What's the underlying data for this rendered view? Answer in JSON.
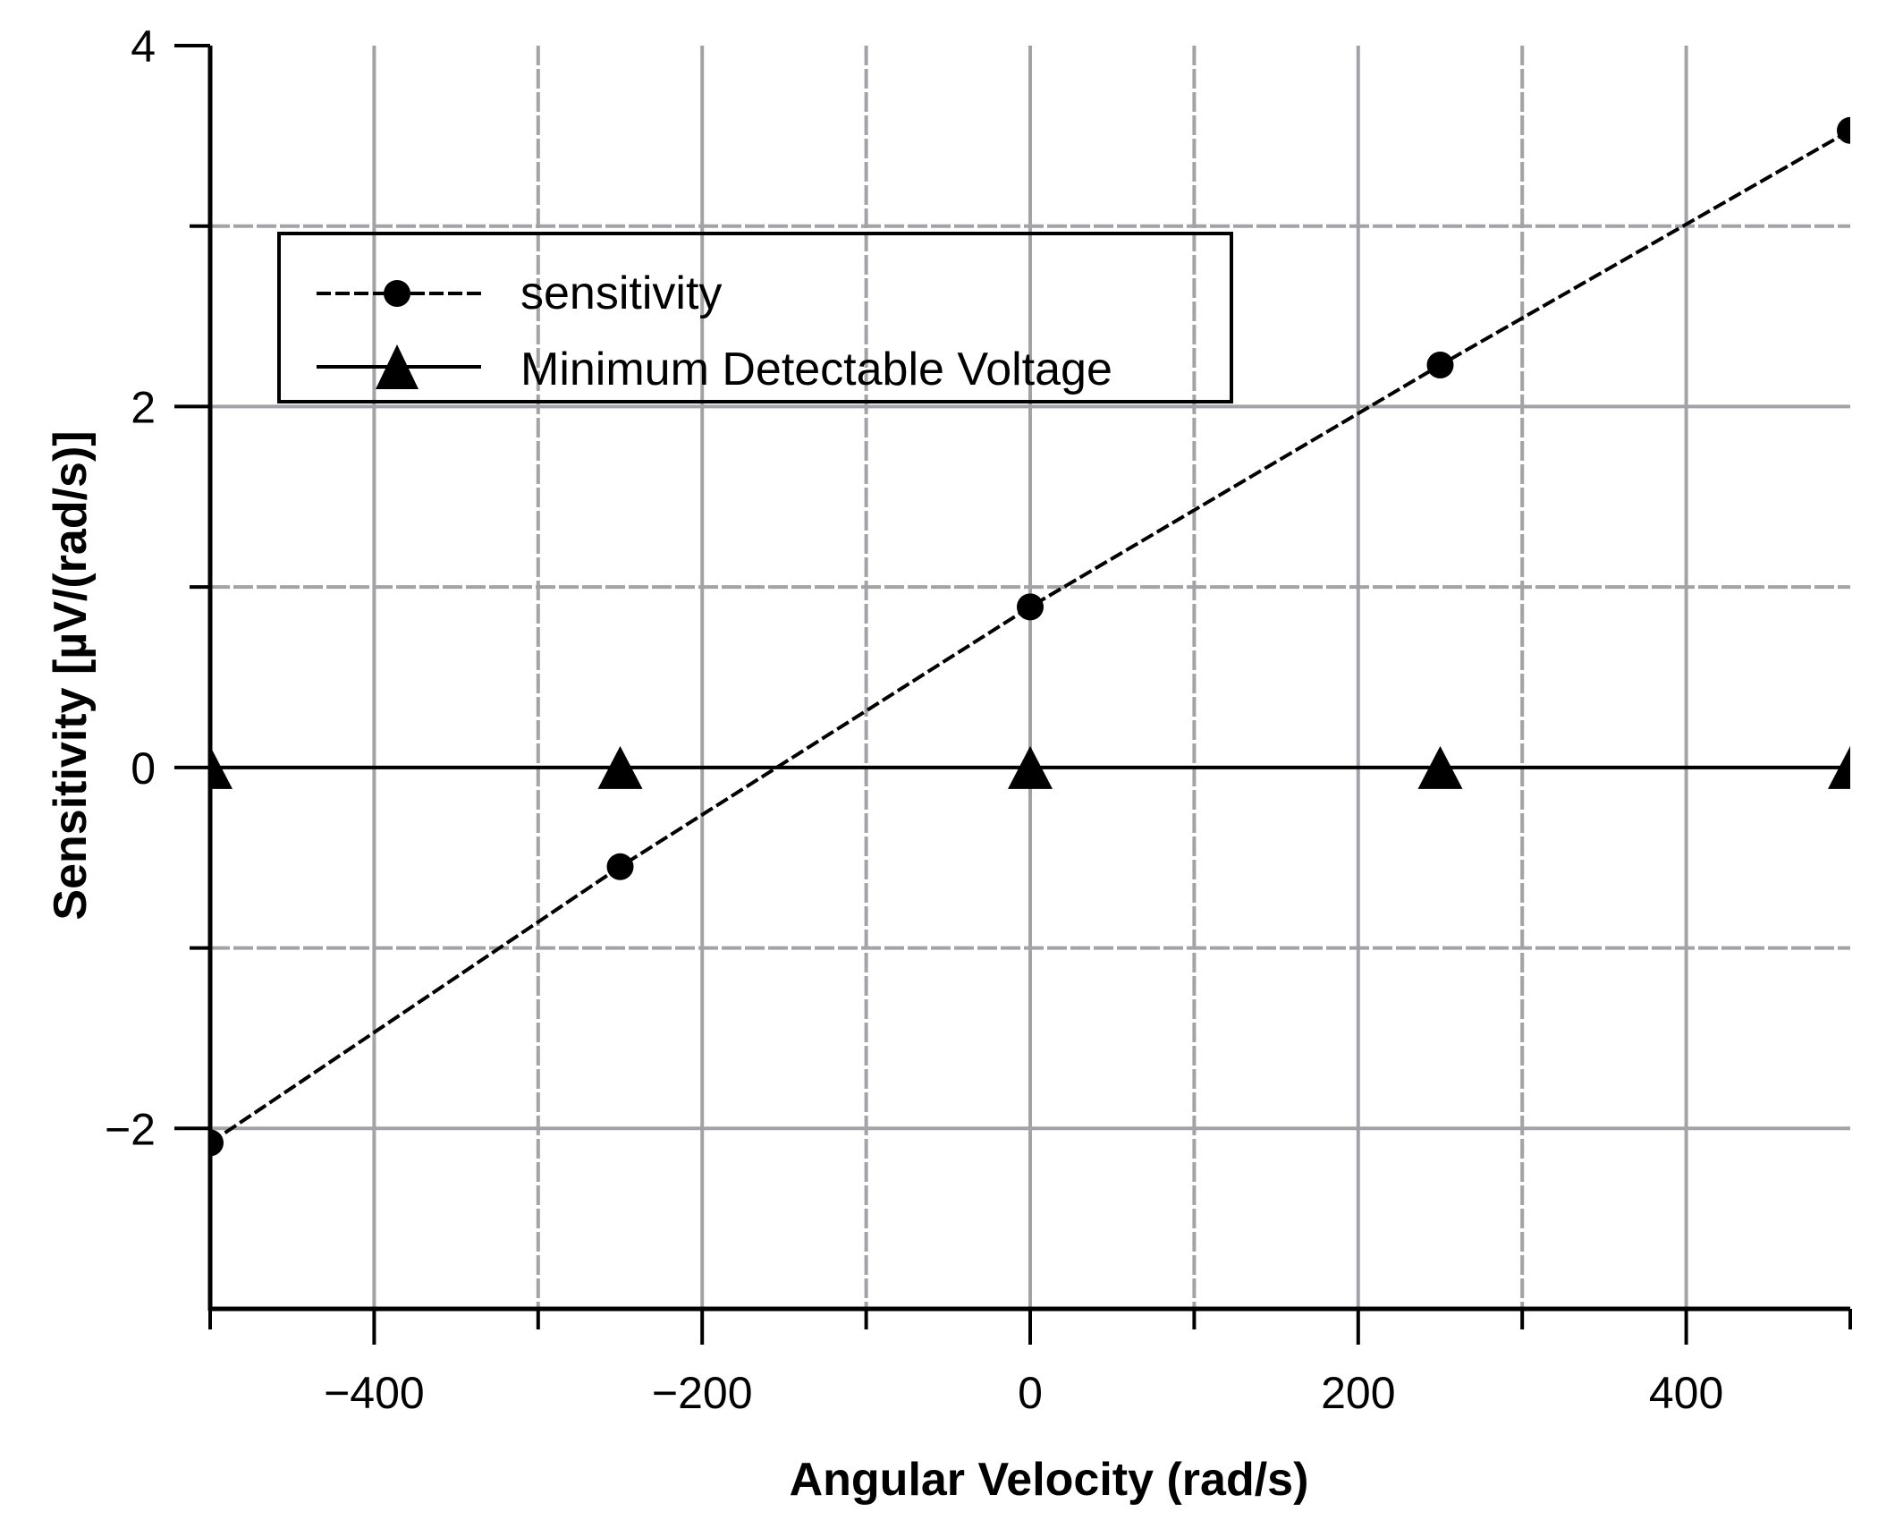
{
  "chart_data": {
    "type": "line",
    "title": "",
    "xlabel": "Angular Velocity (rad/s)",
    "ylabel": "Sensitivity [µV/(rad/s)]",
    "xlim": [
      -500,
      500
    ],
    "ylim": [
      -3,
      4
    ],
    "x_ticks": [
      -400,
      -200,
      0,
      200,
      400
    ],
    "x_tick_labels": [
      "−400",
      "−200",
      "0",
      "200",
      "400"
    ],
    "x_minor_ticks": [
      -500,
      -300,
      -100,
      100,
      300,
      500
    ],
    "y_ticks": [
      4,
      2,
      0,
      -2
    ],
    "y_tick_labels": [
      "4",
      "2",
      "0",
      "−2"
    ],
    "y_minor_ticks": [
      3,
      1,
      -1
    ],
    "grid": true,
    "legend_position": "upper left",
    "x": [
      -500,
      -250,
      0,
      250,
      500
    ],
    "series": [
      {
        "name": "sensitivity",
        "marker": "circle",
        "line": "dashed",
        "values": [
          -2.08,
          -0.55,
          0.89,
          2.23,
          3.53
        ]
      },
      {
        "name": "Minimum Detectable Voltage",
        "marker": "triangle",
        "line": "solid",
        "values": [
          0,
          0,
          0,
          0,
          0
        ]
      }
    ]
  },
  "colors": {
    "axis": "#000000",
    "grid": "#a3a3a7",
    "series": "#000000"
  }
}
